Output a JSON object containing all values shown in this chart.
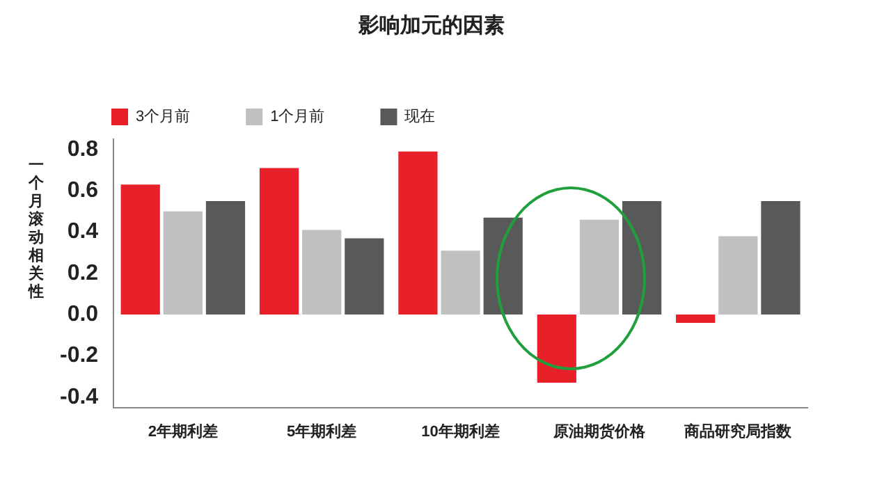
{
  "chart_data": {
    "type": "bar",
    "title": "影响加元的因素",
    "ylabel": "一个月滚动相关性",
    "categories": [
      "2年期利差",
      "5年期利差",
      "10年期利差",
      "原油期货价格",
      "商品研究局指数"
    ],
    "series": [
      {
        "name": "3个月前",
        "color": "#e8202a",
        "values": [
          0.63,
          0.71,
          0.79,
          -0.33,
          -0.04
        ]
      },
      {
        "name": "1个月前",
        "color": "#c0c0c0",
        "values": [
          0.5,
          0.41,
          0.31,
          0.46,
          0.38
        ]
      },
      {
        "name": "现在",
        "color": "#595959",
        "values": [
          0.55,
          0.37,
          0.47,
          0.55,
          0.55
        ]
      }
    ],
    "ylim": [
      -0.45,
      0.85
    ],
    "yticks": [
      {
        "value": -0.4,
        "label": "-0.4"
      },
      {
        "value": -0.2,
        "label": "-0.2"
      },
      {
        "value": 0,
        "label": "0.0"
      },
      {
        "value": 0.2,
        "label": "0.2"
      },
      {
        "value": 0.4,
        "label": "0.4"
      },
      {
        "value": 0.6,
        "label": "0.6"
      },
      {
        "value": 0.8,
        "label": "0.8"
      }
    ],
    "grid": false,
    "legend": "top left"
  }
}
